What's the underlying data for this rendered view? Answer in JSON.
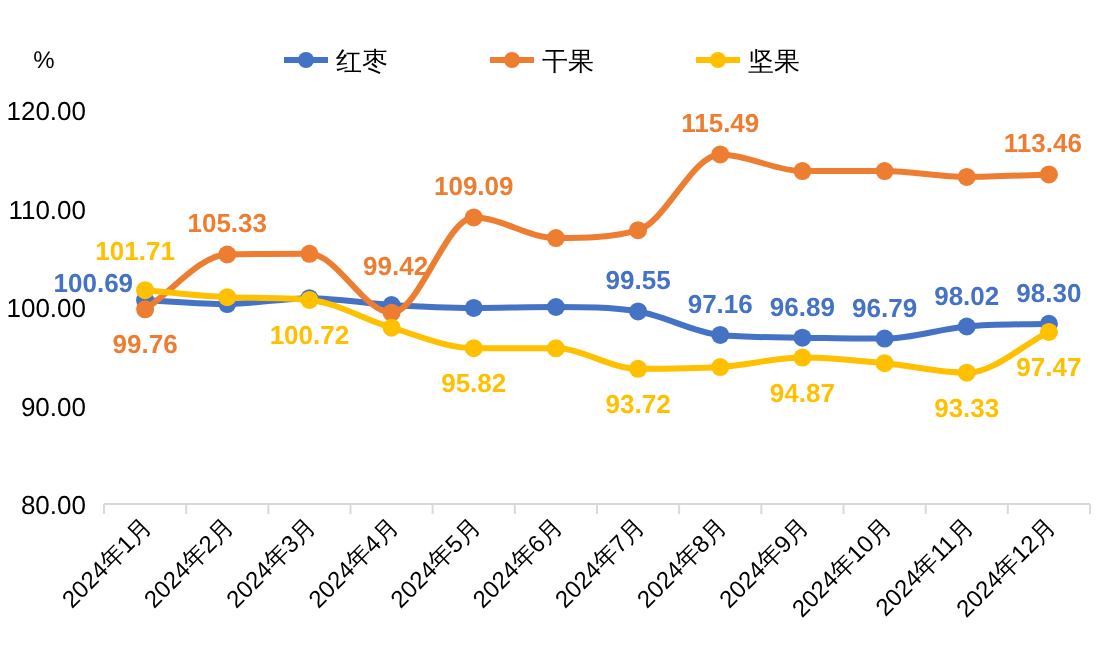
{
  "chart_data": {
    "type": "line",
    "ylabel": "%",
    "categories": [
      "2024年1月",
      "2024年2月",
      "2024年3月",
      "2024年4月",
      "2024年5月",
      "2024年6月",
      "2024年7月",
      "2024年8月",
      "2024年9月",
      "2024年10月",
      "2024年11月",
      "2024年12月"
    ],
    "ylim": [
      80,
      120
    ],
    "yticks": [
      {
        "value": 80,
        "label": "80.00"
      },
      {
        "value": 90,
        "label": "90.00"
      },
      {
        "value": 100,
        "label": "100.00"
      },
      {
        "value": 110,
        "label": "110.00"
      },
      {
        "value": 120,
        "label": "120.00"
      }
    ],
    "grid": false,
    "legend": "top",
    "marker": "circle",
    "line_style": "solid",
    "series": [
      {
        "name": "红枣",
        "color": "#4472c4",
        "values": [
          100.69,
          100.3,
          100.9,
          100.2,
          99.9,
          100.0,
          99.55,
          97.16,
          96.89,
          96.79,
          98.02,
          98.3
        ],
        "value_labels": [
          "100.69",
          null,
          null,
          null,
          null,
          null,
          "99.55",
          "97.16",
          "96.89",
          "96.79",
          "98.02",
          "98.30"
        ]
      },
      {
        "name": "干果",
        "color": "#ed7d31",
        "values": [
          99.76,
          105.33,
          105.4,
          99.42,
          109.09,
          107.0,
          107.8,
          115.49,
          113.8,
          113.8,
          113.2,
          113.46
        ],
        "value_labels": [
          "99.76",
          "105.33",
          null,
          "99.42",
          "109.09",
          null,
          null,
          "115.49",
          null,
          null,
          null,
          "113.46"
        ]
      },
      {
        "name": "坚果",
        "color": "#ffc000",
        "values": [
          101.71,
          101.0,
          100.72,
          97.9,
          95.82,
          95.8,
          93.72,
          93.9,
          94.87,
          94.3,
          93.33,
          97.47
        ],
        "value_labels": [
          "101.71",
          null,
          "100.72",
          null,
          "95.82",
          null,
          "93.72",
          null,
          "94.87",
          null,
          "93.33",
          "97.47"
        ]
      }
    ]
  }
}
